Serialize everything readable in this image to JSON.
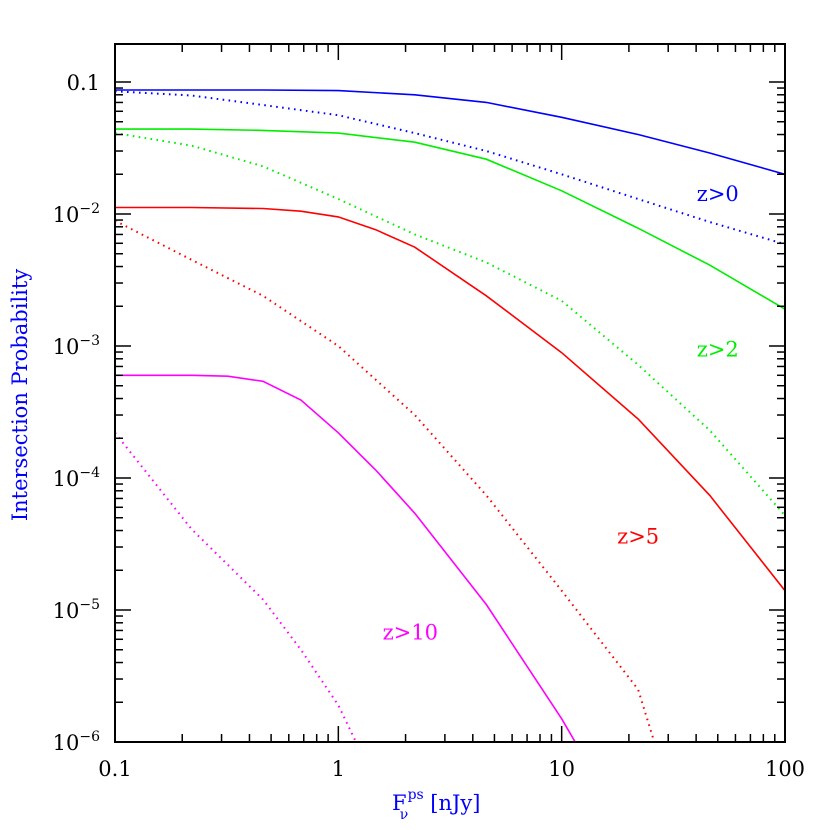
{
  "chart_data": {
    "type": "line",
    "xlabel": {
      "main": "F",
      "sub": "ν",
      "sup": "ps",
      "unit": "[nJy]"
    },
    "ylabel": "Intersection Probability",
    "xscale": "log",
    "yscale": "log",
    "xlim": [
      0.1,
      100
    ],
    "ylim": [
      1e-06,
      0.2
    ],
    "grid": false,
    "label_color": "#0000ff",
    "x_ticks": [
      {
        "value": 0.1,
        "label": "0.1"
      },
      {
        "value": 1,
        "label": "1"
      },
      {
        "value": 10,
        "label": "10"
      },
      {
        "value": 100,
        "label": "100"
      }
    ],
    "y_ticks": [
      {
        "value": 0.1,
        "label": "0.1",
        "base": "",
        "exp": ""
      },
      {
        "value": 0.01,
        "label": "",
        "base": "10",
        "exp": "−2"
      },
      {
        "value": 0.001,
        "label": "",
        "base": "10",
        "exp": "−3"
      },
      {
        "value": 0.0001,
        "label": "",
        "base": "10",
        "exp": "−4"
      },
      {
        "value": 1e-05,
        "label": "",
        "base": "10",
        "exp": "−5"
      },
      {
        "value": 1e-06,
        "label": "",
        "base": "10",
        "exp": "−6"
      }
    ],
    "series": [
      {
        "name": "z>0",
        "color": "#0000ff",
        "style": "solid",
        "x": [
          0.1,
          0.22,
          0.46,
          1,
          2.2,
          4.6,
          10,
          22,
          46,
          100
        ],
        "y": [
          0.087,
          0.087,
          0.087,
          0.086,
          0.08,
          0.07,
          0.054,
          0.04,
          0.029,
          0.02
        ]
      },
      {
        "name": "z>0",
        "color": "#0000ff",
        "style": "dotted",
        "x": [
          0.1,
          0.22,
          0.46,
          1,
          2.2,
          4.6,
          10,
          22,
          46,
          100
        ],
        "y": [
          0.085,
          0.079,
          0.067,
          0.056,
          0.041,
          0.03,
          0.02,
          0.013,
          0.0087,
          0.0059
        ]
      },
      {
        "name": "z>2",
        "color": "#00ee00",
        "style": "solid",
        "x": [
          0.1,
          0.22,
          0.46,
          1,
          2.2,
          4.6,
          10,
          22,
          46,
          100
        ],
        "y": [
          0.044,
          0.044,
          0.043,
          0.041,
          0.035,
          0.026,
          0.015,
          0.0078,
          0.0041,
          0.0019
        ]
      },
      {
        "name": "z>2",
        "color": "#00ee00",
        "style": "dotted",
        "x": [
          0.1,
          0.22,
          0.46,
          1,
          2.2,
          4.6,
          10,
          22,
          46,
          100
        ],
        "y": [
          0.041,
          0.033,
          0.023,
          0.013,
          0.007,
          0.0043,
          0.0022,
          0.00072,
          0.00023,
          5.2e-05
        ]
      },
      {
        "name": "z>5",
        "color": "#ff0000",
        "style": "solid",
        "x": [
          0.1,
          0.22,
          0.46,
          0.68,
          1,
          1.47,
          2.2,
          4.6,
          10,
          22,
          46,
          100
        ],
        "y": [
          0.0112,
          0.0112,
          0.011,
          0.0105,
          0.0095,
          0.0076,
          0.0056,
          0.0024,
          0.00089,
          0.00028,
          7.4e-05,
          1.4e-05
        ]
      },
      {
        "name": "z>5",
        "color": "#ff0000",
        "style": "dotted",
        "x": [
          0.1,
          0.22,
          0.46,
          1,
          2.2,
          4.6,
          10,
          22,
          26
        ],
        "y": [
          0.0089,
          0.0045,
          0.0024,
          0.001,
          0.0003,
          7.4e-05,
          1.4e-05,
          2.5e-06,
          1e-06
        ]
      },
      {
        "name": "z>10",
        "color": "#ff00ff",
        "style": "solid",
        "x": [
          0.1,
          0.22,
          0.32,
          0.46,
          0.68,
          1,
          1.47,
          2.2,
          4.6,
          10,
          11.5
        ],
        "y": [
          0.0006,
          0.0006,
          0.00059,
          0.00054,
          0.00039,
          0.00022,
          0.000115,
          5.4e-05,
          1.1e-05,
          1.5e-06,
          1e-06
        ]
      },
      {
        "name": "z>10",
        "color": "#ff00ff",
        "style": "dotted",
        "x": [
          0.1,
          0.22,
          0.46,
          0.68,
          1,
          1.2
        ],
        "y": [
          0.00022,
          4.1e-05,
          1.2e-05,
          5e-06,
          1.9e-06,
          1e-06
        ]
      }
    ],
    "annotations": [
      {
        "text": "z>0",
        "color": "#0000ff",
        "x": 50,
        "y": 0.0125
      },
      {
        "text": "z>2",
        "color": "#00ee00",
        "x": 50,
        "y": 0.00083
      },
      {
        "text": "z>5",
        "color": "#ff0000",
        "x": 22,
        "y": 3.2e-05
      },
      {
        "text": "z>10",
        "color": "#ff00ff",
        "x": 2.1,
        "y": 6e-06
      }
    ]
  }
}
